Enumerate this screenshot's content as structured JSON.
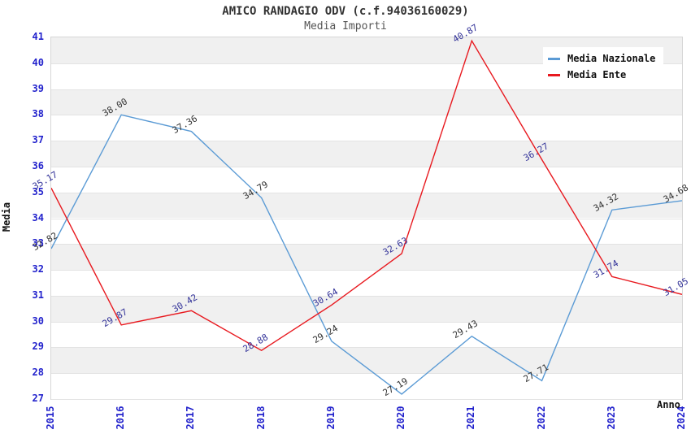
{
  "header": {
    "title": "AMICO RANDAGIO ODV (c.f.94036160029)",
    "subtitle": "Media Importi"
  },
  "chart_data": {
    "type": "line",
    "x": [
      2015,
      2016,
      2017,
      2018,
      2019,
      2020,
      2021,
      2022,
      2023,
      2024
    ],
    "series": [
      {
        "name": "Media Nazionale",
        "color": "#5b9bd5",
        "label_color": "#333333",
        "values": [
          32.82,
          38.0,
          37.36,
          34.79,
          29.24,
          27.19,
          29.43,
          27.71,
          34.32,
          34.68
        ]
      },
      {
        "name": "Media Ente",
        "color": "#e8191f",
        "label_color": "#333399",
        "values": [
          35.17,
          29.87,
          30.42,
          28.88,
          30.64,
          32.63,
          40.87,
          36.27,
          31.74,
          31.05
        ]
      }
    ],
    "xlabel": "Anno",
    "ylabel": "Media",
    "ylim": [
      27,
      41
    ],
    "ytick_step": 1,
    "grid": "horizontal",
    "legend_position": "top-right",
    "band_colors": [
      "#f0f0f0",
      "#ffffff"
    ],
    "tick_color": "#2222cc"
  }
}
